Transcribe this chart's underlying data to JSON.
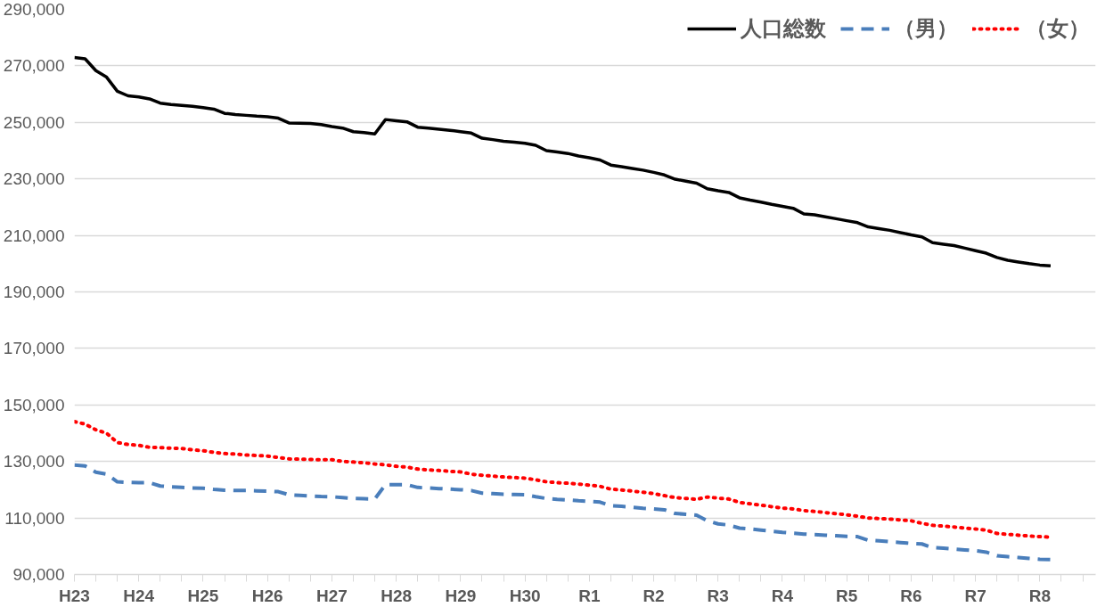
{
  "chart_data": {
    "type": "line",
    "categories": [
      "H23",
      null,
      null,
      null,
      null,
      null,
      "H24",
      null,
      null,
      null,
      null,
      null,
      "H25",
      null,
      null,
      null,
      null,
      null,
      "H26",
      null,
      null,
      null,
      null,
      null,
      "H27",
      null,
      null,
      null,
      null,
      null,
      "H28",
      null,
      null,
      null,
      null,
      null,
      "H29",
      null,
      null,
      null,
      null,
      null,
      "H30",
      null,
      null,
      null,
      null,
      null,
      "R1",
      null,
      null,
      null,
      null,
      null,
      "R2",
      null,
      null,
      null,
      null,
      null,
      "R3",
      null,
      null,
      null,
      null,
      null,
      "R4",
      null,
      null,
      null,
      null,
      null,
      "R5",
      null,
      null,
      null,
      null,
      null,
      "R6",
      null,
      null,
      null,
      null,
      null,
      "R7",
      null,
      null,
      null,
      null,
      null,
      "R8",
      null
    ],
    "ylim": [
      90000,
      290000
    ],
    "yticks": [
      {
        "value": 90000,
        "label": "90,000"
      },
      {
        "value": 110000,
        "label": "110,000"
      },
      {
        "value": 130000,
        "label": "130,000"
      },
      {
        "value": 150000,
        "label": "150,000"
      },
      {
        "value": 170000,
        "label": "170,000"
      },
      {
        "value": 190000,
        "label": "190,000"
      },
      {
        "value": 210000,
        "label": "210,000"
      },
      {
        "value": 230000,
        "label": "230,000"
      },
      {
        "value": 250000,
        "label": "250,000"
      },
      {
        "value": 270000,
        "label": "270,000"
      },
      {
        "value": 290000,
        "label": "290,000"
      }
    ],
    "grid": "y",
    "legend": "top right",
    "series": [
      {
        "name": "人口総数",
        "color": "#000000",
        "line_style": "solid",
        "values": [
          273000,
          272500,
          268300,
          266000,
          261000,
          259400,
          259000,
          258300,
          256800,
          256300,
          256000,
          255700,
          255200,
          254700,
          253200,
          252800,
          252500,
          252200,
          252000,
          251500,
          249800,
          249700,
          249600,
          249200,
          248500,
          248000,
          246700,
          246400,
          245900,
          251000,
          250600,
          250200,
          248300,
          248000,
          247600,
          247200,
          246700,
          246200,
          244400,
          243900,
          243300,
          243000,
          242600,
          241900,
          240000,
          239500,
          239000,
          238100,
          237500,
          236700,
          234900,
          234300,
          233700,
          233100,
          232300,
          231400,
          229900,
          229200,
          228500,
          226500,
          225800,
          225200,
          223300,
          222500,
          221800,
          221000,
          220300,
          219600,
          217600,
          217300,
          216600,
          215900,
          215200,
          214500,
          213000,
          212400,
          211800,
          211000,
          210200,
          209500,
          207400,
          206900,
          206400,
          205500,
          204600,
          203700,
          202200,
          201200,
          200600,
          200000,
          199500,
          199200
        ]
      },
      {
        "name": "（男）",
        "color": "#4a7ebb",
        "line_style": "dashed",
        "values": [
          128700,
          128400,
          126200,
          125500,
          122800,
          122600,
          122500,
          122500,
          121300,
          121000,
          120800,
          120600,
          120500,
          120100,
          119800,
          119700,
          119700,
          119600,
          119500,
          119300,
          118200,
          118000,
          117800,
          117600,
          117500,
          117200,
          116900,
          116800,
          116700,
          121800,
          121800,
          121800,
          120800,
          120600,
          120400,
          120200,
          120000,
          119700,
          118800,
          118600,
          118400,
          118300,
          118200,
          117500,
          116900,
          116600,
          116400,
          116100,
          115900,
          115600,
          114300,
          114100,
          113800,
          113400,
          113200,
          112900,
          111600,
          111300,
          111000,
          109000,
          107900,
          107500,
          106400,
          106100,
          105700,
          105300,
          104900,
          104600,
          104300,
          104100,
          103900,
          103700,
          103500,
          103400,
          102100,
          101900,
          101600,
          101300,
          101000,
          100800,
          99500,
          99300,
          99000,
          98700,
          98400,
          97900,
          96600,
          96300,
          96000,
          95700,
          95400,
          95300
        ]
      },
      {
        "name": "（女）",
        "color": "#ff0000",
        "line_style": "dotted",
        "values": [
          144100,
          143200,
          141200,
          140000,
          136700,
          136000,
          135700,
          135000,
          134900,
          134700,
          134600,
          134100,
          133800,
          133200,
          132800,
          132600,
          132300,
          132100,
          131900,
          131400,
          130900,
          130800,
          130700,
          130600,
          130600,
          130000,
          129800,
          129500,
          129100,
          128800,
          128300,
          128000,
          127300,
          127000,
          126800,
          126500,
          126300,
          125500,
          125100,
          124800,
          124500,
          124300,
          124100,
          123500,
          122800,
          122500,
          122300,
          122000,
          121600,
          121200,
          120200,
          119900,
          119500,
          119100,
          118600,
          117900,
          117200,
          116900,
          116600,
          117400,
          117000,
          116700,
          115500,
          115000,
          114500,
          114000,
          113500,
          113200,
          112600,
          112300,
          111900,
          111500,
          111100,
          110600,
          110000,
          109800,
          109600,
          109300,
          109000,
          108100,
          107400,
          107100,
          106800,
          106400,
          106100,
          105700,
          104500,
          104200,
          103900,
          103600,
          103400,
          103200
        ]
      }
    ]
  }
}
